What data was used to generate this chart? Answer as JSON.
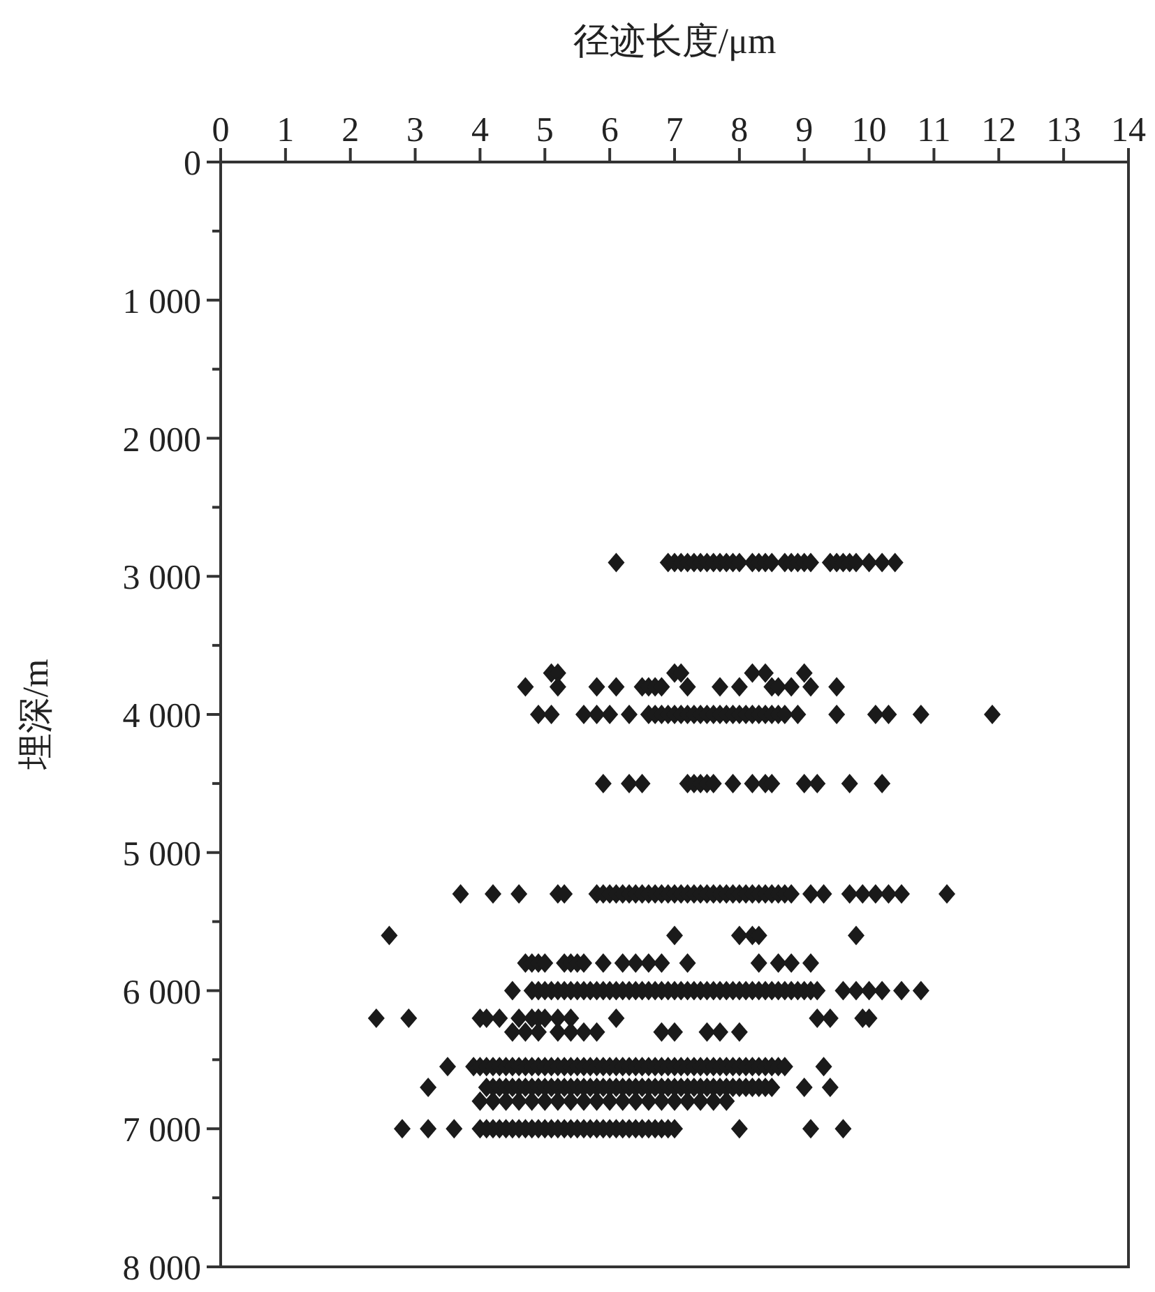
{
  "chart_data": {
    "type": "scatter",
    "xlabel": "径迹长度/μm",
    "ylabel": "埋深/m",
    "xlim": [
      0,
      14
    ],
    "xticks": [
      0,
      1,
      2,
      3,
      4,
      5,
      6,
      7,
      8,
      9,
      10,
      11,
      12,
      13,
      14
    ],
    "ylim": [
      8000,
      0
    ],
    "yticks": [
      0,
      {
        "value": 500,
        "label": null
      },
      {
        "value": 1000,
        "label": "1 000"
      },
      {
        "value": 1500,
        "label": null
      },
      {
        "value": 2000,
        "label": "2 000"
      },
      {
        "value": 2500,
        "label": null
      },
      {
        "value": 3000,
        "label": "3 000"
      },
      {
        "value": 3500,
        "label": null
      },
      {
        "value": 4000,
        "label": "4 000"
      },
      {
        "value": 4500,
        "label": null
      },
      {
        "value": 5000,
        "label": "5 000"
      },
      {
        "value": 5500,
        "label": null
      },
      {
        "value": 6000,
        "label": "6 000"
      },
      {
        "value": 6500,
        "label": null
      },
      {
        "value": 7000,
        "label": "7 000"
      },
      {
        "value": 7500,
        "label": null
      },
      {
        "value": 8000,
        "label": "8 000"
      }
    ],
    "grid": false,
    "marker": "diamond",
    "series": [
      {
        "color": "#1a1a1a",
        "x": [
          6.1,
          6.9,
          7.0,
          7.1,
          7.2,
          7.3,
          7.4,
          7.5,
          7.6,
          7.7,
          7.8,
          7.9,
          8.0,
          8.2,
          8.3,
          8.4,
          8.5,
          8.7,
          8.8,
          8.9,
          9.0,
          9.1,
          9.4,
          9.5,
          9.6,
          9.7,
          9.8,
          10.0,
          10.2,
          10.4
        ],
        "values": [
          2900,
          2900,
          2900,
          2900,
          2900,
          2900,
          2900,
          2900,
          2900,
          2900,
          2900,
          2900,
          2900,
          2900,
          2900,
          2900,
          2900,
          2900,
          2900,
          2900,
          2900,
          2900,
          2900,
          2900,
          2900,
          2900,
          2900,
          2900,
          2900,
          2900
        ]
      },
      {
        "color": "#1a1a1a",
        "x": [
          5.1,
          5.2,
          7.0,
          7.1,
          8.2,
          8.4,
          9.0
        ],
        "values": [
          3700,
          3700,
          3700,
          3700,
          3700,
          3700,
          3700
        ]
      },
      {
        "color": "#1a1a1a",
        "x": [
          4.7,
          5.2,
          5.8,
          6.1,
          6.5,
          6.6,
          6.7,
          6.8,
          7.2,
          7.7,
          8.0,
          8.5,
          8.6,
          8.8,
          9.1,
          9.5
        ],
        "values": [
          3800,
          3800,
          3800,
          3800,
          3800,
          3800,
          3800,
          3800,
          3800,
          3800,
          3800,
          3800,
          3800,
          3800,
          3800,
          3800
        ]
      },
      {
        "color": "#1a1a1a",
        "x": [
          4.9,
          5.1,
          5.6,
          5.8,
          6.0,
          6.3,
          6.6,
          6.7,
          6.8,
          6.9,
          7.0,
          7.1,
          7.2,
          7.3,
          7.4,
          7.5,
          7.6,
          7.7,
          7.8,
          7.9,
          8.0,
          8.1,
          8.2,
          8.3,
          8.4,
          8.5,
          8.6,
          8.7,
          8.9,
          9.5,
          10.1,
          10.3,
          10.8,
          11.9
        ],
        "values": [
          4000,
          4000,
          4000,
          4000,
          4000,
          4000,
          4000,
          4000,
          4000,
          4000,
          4000,
          4000,
          4000,
          4000,
          4000,
          4000,
          4000,
          4000,
          4000,
          4000,
          4000,
          4000,
          4000,
          4000,
          4000,
          4000,
          4000,
          4000,
          4000,
          4000,
          4000,
          4000,
          4000,
          4000
        ]
      },
      {
        "color": "#1a1a1a",
        "x": [
          5.9,
          6.3,
          6.5,
          7.2,
          7.3,
          7.4,
          7.5,
          7.6,
          7.9,
          8.2,
          8.4,
          8.5,
          9.0,
          9.2,
          9.7,
          10.2
        ],
        "values": [
          4500,
          4500,
          4500,
          4500,
          4500,
          4500,
          4500,
          4500,
          4500,
          4500,
          4500,
          4500,
          4500,
          4500,
          4500,
          4500
        ]
      },
      {
        "color": "#1a1a1a",
        "x": [
          3.7,
          4.2,
          4.6,
          5.2,
          5.3,
          5.8,
          5.9,
          6.0,
          6.1,
          6.2,
          6.3,
          6.4,
          6.5,
          6.6,
          6.7,
          6.8,
          6.9,
          7.0,
          7.1,
          7.2,
          7.3,
          7.4,
          7.5,
          7.6,
          7.7,
          7.8,
          7.9,
          8.0,
          8.1,
          8.2,
          8.3,
          8.4,
          8.5,
          8.6,
          8.7,
          8.8,
          9.1,
          9.3,
          9.7,
          9.9,
          10.1,
          10.3,
          10.5,
          11.2
        ],
        "values": [
          5300,
          5300,
          5300,
          5300,
          5300,
          5300,
          5300,
          5300,
          5300,
          5300,
          5300,
          5300,
          5300,
          5300,
          5300,
          5300,
          5300,
          5300,
          5300,
          5300,
          5300,
          5300,
          5300,
          5300,
          5300,
          5300,
          5300,
          5300,
          5300,
          5300,
          5300,
          5300,
          5300,
          5300,
          5300,
          5300,
          5300,
          5300,
          5300,
          5300,
          5300,
          5300,
          5300,
          5300
        ]
      },
      {
        "color": "#1a1a1a",
        "x": [
          2.6,
          7.0,
          8.0,
          8.2,
          8.3,
          9.8
        ],
        "values": [
          5600,
          5600,
          5600,
          5600,
          5600,
          5600
        ]
      },
      {
        "color": "#1a1a1a",
        "x": [
          4.7,
          4.8,
          4.9,
          5.0,
          5.3,
          5.4,
          5.5,
          5.6,
          5.9,
          6.2,
          6.4,
          6.6,
          6.8,
          7.2,
          8.3,
          8.6,
          8.8,
          9.1
        ],
        "values": [
          5800,
          5800,
          5800,
          5800,
          5800,
          5800,
          5800,
          5800,
          5800,
          5800,
          5800,
          5800,
          5800,
          5800,
          5800,
          5800,
          5800,
          5800
        ]
      },
      {
        "color": "#1a1a1a",
        "x": [
          4.5,
          4.8,
          4.9,
          5.0,
          5.1,
          5.2,
          5.3,
          5.4,
          5.5,
          5.6,
          5.7,
          5.8,
          5.9,
          6.0,
          6.1,
          6.2,
          6.3,
          6.4,
          6.5,
          6.6,
          6.7,
          6.8,
          6.9,
          7.0,
          7.1,
          7.2,
          7.3,
          7.4,
          7.5,
          7.6,
          7.7,
          7.8,
          7.9,
          8.0,
          8.1,
          8.2,
          8.3,
          8.4,
          8.5,
          8.6,
          8.7,
          8.8,
          8.9,
          9.0,
          9.1,
          9.2,
          9.6,
          9.8,
          10.0,
          10.2,
          10.5,
          10.8
        ],
        "values": [
          6000,
          6000,
          6000,
          6000,
          6000,
          6000,
          6000,
          6000,
          6000,
          6000,
          6000,
          6000,
          6000,
          6000,
          6000,
          6000,
          6000,
          6000,
          6000,
          6000,
          6000,
          6000,
          6000,
          6000,
          6000,
          6000,
          6000,
          6000,
          6000,
          6000,
          6000,
          6000,
          6000,
          6000,
          6000,
          6000,
          6000,
          6000,
          6000,
          6000,
          6000,
          6000,
          6000,
          6000,
          6000,
          6000,
          6000,
          6000,
          6000,
          6000,
          6000,
          6000
        ]
      },
      {
        "color": "#1a1a1a",
        "x": [
          2.4,
          2.9,
          4.0,
          4.1,
          4.3,
          4.6,
          4.8,
          4.9,
          5.0,
          5.2,
          5.4,
          6.1,
          9.2,
          9.4,
          9.9,
          10.0
        ],
        "values": [
          6200,
          6200,
          6200,
          6200,
          6200,
          6200,
          6200,
          6200,
          6200,
          6200,
          6200,
          6200,
          6200,
          6200,
          6200,
          6200
        ]
      },
      {
        "color": "#1a1a1a",
        "x": [
          4.5,
          4.7,
          4.9,
          5.2,
          5.4,
          5.6,
          5.8,
          6.8,
          7.0,
          7.5,
          7.7,
          8.0
        ],
        "values": [
          6300,
          6300,
          6300,
          6300,
          6300,
          6300,
          6300,
          6300,
          6300,
          6300,
          6300,
          6300
        ]
      },
      {
        "color": "#1a1a1a",
        "x": [
          3.5,
          3.9,
          4.0,
          4.1,
          4.2,
          4.3,
          4.4,
          4.5,
          4.6,
          4.7,
          4.8,
          4.9,
          5.0,
          5.1,
          5.2,
          5.3,
          5.4,
          5.5,
          5.6,
          5.7,
          5.8,
          5.9,
          6.0,
          6.1,
          6.2,
          6.3,
          6.4,
          6.5,
          6.6,
          6.7,
          6.8,
          6.9,
          7.0,
          7.1,
          7.2,
          7.3,
          7.4,
          7.5,
          7.6,
          7.7,
          7.8,
          7.9,
          8.0,
          8.1,
          8.2,
          8.3,
          8.4,
          8.5,
          8.6,
          8.7,
          9.3
        ],
        "values": [
          6550,
          6550,
          6550,
          6550,
          6550,
          6550,
          6550,
          6550,
          6550,
          6550,
          6550,
          6550,
          6550,
          6550,
          6550,
          6550,
          6550,
          6550,
          6550,
          6550,
          6550,
          6550,
          6550,
          6550,
          6550,
          6550,
          6550,
          6550,
          6550,
          6550,
          6550,
          6550,
          6550,
          6550,
          6550,
          6550,
          6550,
          6550,
          6550,
          6550,
          6550,
          6550,
          6550,
          6550,
          6550,
          6550,
          6550,
          6550,
          6550,
          6550,
          6550
        ]
      },
      {
        "color": "#1a1a1a",
        "x": [
          3.2,
          4.1,
          4.2,
          4.3,
          4.4,
          4.5,
          4.6,
          4.7,
          4.8,
          4.9,
          5.0,
          5.1,
          5.2,
          5.3,
          5.4,
          5.5,
          5.6,
          5.7,
          5.8,
          5.9,
          6.0,
          6.1,
          6.2,
          6.3,
          6.4,
          6.5,
          6.6,
          6.7,
          6.8,
          6.9,
          7.0,
          7.1,
          7.2,
          7.3,
          7.4,
          7.5,
          7.6,
          7.7,
          7.8,
          7.9,
          8.0,
          8.1,
          8.2,
          8.3,
          8.4,
          8.5,
          9.0,
          9.4
        ],
        "values": [
          6700,
          6700,
          6700,
          6700,
          6700,
          6700,
          6700,
          6700,
          6700,
          6700,
          6700,
          6700,
          6700,
          6700,
          6700,
          6700,
          6700,
          6700,
          6700,
          6700,
          6700,
          6700,
          6700,
          6700,
          6700,
          6700,
          6700,
          6700,
          6700,
          6700,
          6700,
          6700,
          6700,
          6700,
          6700,
          6700,
          6700,
          6700,
          6700,
          6700,
          6700,
          6700,
          6700,
          6700,
          6700,
          6700,
          6700,
          6700
        ]
      },
      {
        "color": "#1a1a1a",
        "x": [
          4.0,
          4.2,
          4.4,
          4.6,
          4.8,
          5.0,
          5.2,
          5.4,
          5.6,
          5.8,
          6.0,
          6.2,
          6.4,
          6.6,
          6.8,
          7.0,
          7.2,
          7.4,
          7.6,
          7.8
        ],
        "values": [
          6800,
          6800,
          6800,
          6800,
          6800,
          6800,
          6800,
          6800,
          6800,
          6800,
          6800,
          6800,
          6800,
          6800,
          6800,
          6800,
          6800,
          6800,
          6800,
          6800
        ]
      },
      {
        "color": "#1a1a1a",
        "x": [
          2.8,
          3.2,
          3.6,
          4.0,
          4.1,
          4.2,
          4.3,
          4.4,
          4.5,
          4.6,
          4.7,
          4.8,
          4.9,
          5.0,
          5.1,
          5.2,
          5.3,
          5.4,
          5.5,
          5.6,
          5.7,
          5.8,
          5.9,
          6.0,
          6.1,
          6.2,
          6.3,
          6.4,
          6.5,
          6.6,
          6.7,
          6.8,
          6.9,
          7.0,
          8.0,
          9.1,
          9.6
        ],
        "values": [
          7000,
          7000,
          7000,
          7000,
          7000,
          7000,
          7000,
          7000,
          7000,
          7000,
          7000,
          7000,
          7000,
          7000,
          7000,
          7000,
          7000,
          7000,
          7000,
          7000,
          7000,
          7000,
          7000,
          7000,
          7000,
          7000,
          7000,
          7000,
          7000,
          7000,
          7000,
          7000,
          7000,
          7000,
          7000,
          7000,
          7000
        ]
      }
    ]
  }
}
